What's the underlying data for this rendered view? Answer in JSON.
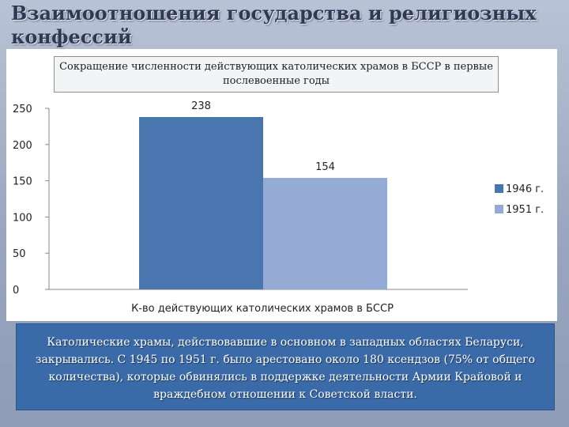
{
  "slide": {
    "title": "Взаимоотношения государства и религиозных конфессий",
    "caption": "Католические храмы, действовавшие в основном в западных областях Беларуси, закрывались. С 1945 по 1951 г. было арестовано около 180 ксендзов (75% от общего количества), которые обвинялись в поддержке деятельности Армии Крайовой и враждебном отношении к Советской власти."
  },
  "chart_data": {
    "type": "bar",
    "title": "Сокращение численности действующих католических храмов в БССР в первые послевоенные годы",
    "categories": [
      "К-во действующих католических храмов в БССР"
    ],
    "series": [
      {
        "name": "1946 г.",
        "values": [
          238
        ],
        "color": "#4a76b0"
      },
      {
        "name": "1951 г.",
        "values": [
          154
        ],
        "color": "#95abd6"
      }
    ],
    "ylim": [
      0,
      250
    ],
    "yticks": [
      0,
      50,
      100,
      150,
      200,
      250
    ],
    "xlabel": "",
    "ylabel": "",
    "grid": false,
    "legend": "right",
    "data_labels": true
  }
}
